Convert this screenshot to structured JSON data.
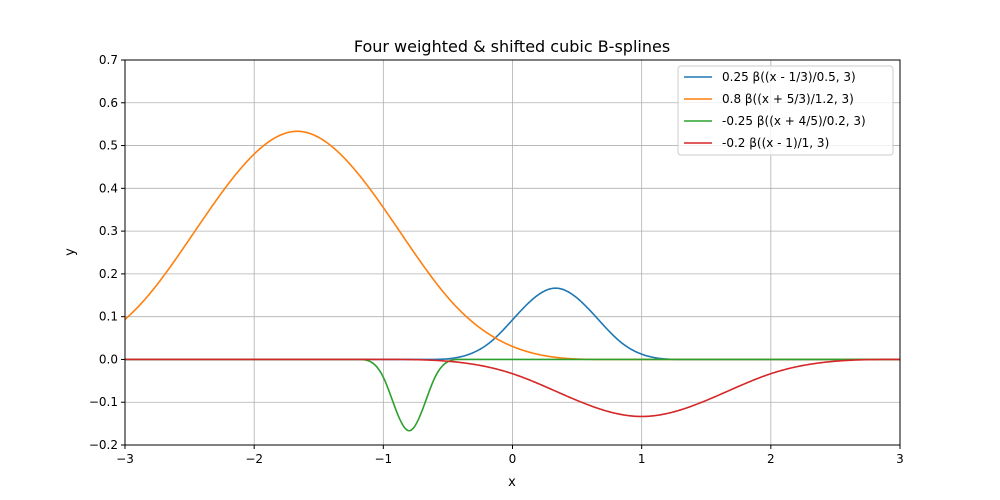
{
  "chart_data": {
    "type": "line",
    "title": "Four weighted & shifted cubic B-splines",
    "xlabel": "x",
    "ylabel": "y",
    "xlim": [
      -3,
      3
    ],
    "ylim": [
      -0.2,
      0.7
    ],
    "xticks": [
      -3,
      -2,
      -1,
      0,
      1,
      2,
      3
    ],
    "xtick_labels": [
      "−3",
      "−2",
      "−1",
      "0",
      "1",
      "2",
      "3"
    ],
    "yticks": [
      -0.2,
      -0.1,
      0.0,
      0.1,
      0.2,
      0.3,
      0.4,
      0.5,
      0.6,
      0.7
    ],
    "ytick_labels": [
      "−0.2",
      "−0.1",
      "0.0",
      "0.1",
      "0.2",
      "0.3",
      "0.4",
      "0.5",
      "0.6",
      "0.7"
    ],
    "grid": true,
    "legend_position": "top-right",
    "series": [
      {
        "name": "0.25 β((x - 1/3)/0.5, 3)",
        "color": "#1f77b4",
        "weight": 0.25,
        "shift": 0.3333333,
        "scale": 0.5,
        "degree": 3
      },
      {
        "name": "0.8 β((x + 5/3)/1.2, 3)",
        "color": "#ff7f0e",
        "weight": 0.8,
        "shift": -1.6666667,
        "scale": 1.2,
        "degree": 3
      },
      {
        "name": "-0.25 β((x + 4/5)/0.2, 3)",
        "color": "#2ca02c",
        "weight": -0.25,
        "shift": -0.8,
        "scale": 0.2,
        "degree": 3
      },
      {
        "name": "-0.2 β((x - 1)/1, 3)",
        "color": "#d62728",
        "weight": -0.2,
        "shift": 1,
        "scale": 1,
        "degree": 3
      }
    ]
  }
}
